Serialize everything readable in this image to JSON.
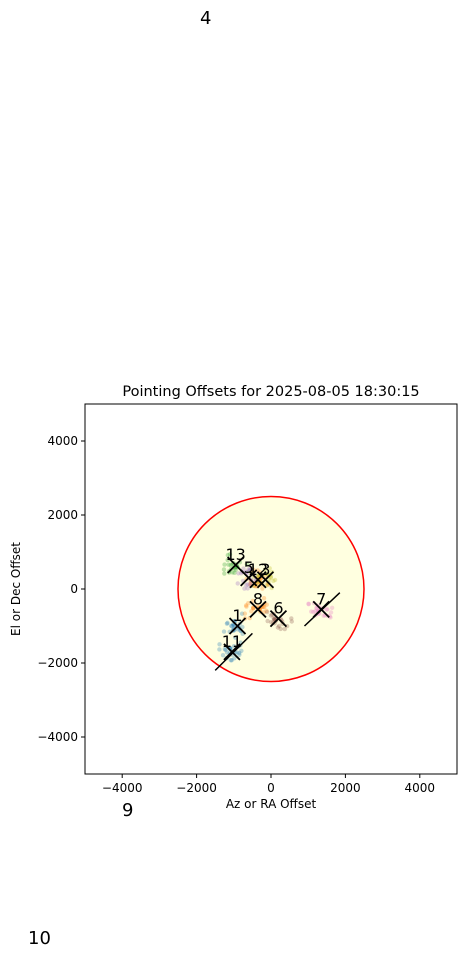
{
  "stray_labels": [
    "4",
    "9",
    "10"
  ],
  "chart_data": {
    "type": "scatter",
    "title": "Pointing Offsets for 2025-08-05 18:30:15",
    "xlabel": "Az or RA Offset",
    "ylabel": "El or Dec Offset",
    "xlim": [
      -5000,
      5000
    ],
    "ylim": [
      -5000,
      5000
    ],
    "xticks": [
      -4000,
      -2000,
      0,
      2000,
      4000
    ],
    "yticks": [
      -4000,
      -2000,
      0,
      2000,
      4000
    ],
    "xtick_labels": [
      "−4000",
      "−2000",
      "0",
      "2000",
      "4000"
    ],
    "ytick_labels": [
      "−4000",
      "−2000",
      "0",
      "2000",
      "4000"
    ],
    "grid": false,
    "colors": {
      "background": "#ffffe0",
      "circle": "#ff0000",
      "marker": "#000000"
    },
    "circle_radius": 2500,
    "clusters": [
      {
        "label": "1",
        "x": -900,
        "y": -1000,
        "color": "#1f77b4"
      },
      {
        "label": "11",
        "x": -1050,
        "y": -1700,
        "color": "#1f77b4"
      },
      {
        "label": "13",
        "x": -950,
        "y": 650,
        "color": "#2ca02c"
      },
      {
        "label": "5",
        "x": -600,
        "y": 300,
        "color": "#9467bd"
      },
      {
        "label": "12",
        "x": -350,
        "y": 250,
        "color": "#ff7f0e"
      },
      {
        "label": "3",
        "x": -150,
        "y": 250,
        "color": "#bcbd22"
      },
      {
        "label": "8",
        "x": -350,
        "y": -550,
        "color": "#ff7f0e"
      },
      {
        "label": "6",
        "x": 200,
        "y": -800,
        "color": "#8c564b"
      },
      {
        "label": "7",
        "x": 1350,
        "y": -550,
        "color": "#e377c2"
      }
    ],
    "cross_lines": [
      {
        "x1": -1500,
        "y1": -2200,
        "x2": -500,
        "y2": -1200
      },
      {
        "x1": 900,
        "y1": -1000,
        "x2": 1850,
        "y2": -100
      }
    ]
  }
}
